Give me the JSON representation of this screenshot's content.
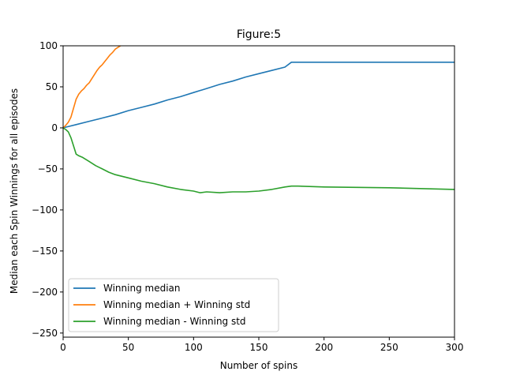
{
  "chart_data": {
    "type": "line",
    "title": "Figure:5",
    "xlabel": "Number of spins",
    "ylabel": "Median each Spin Winnings for all episodes",
    "xlim": [
      0,
      300
    ],
    "ylim": [
      -255,
      100
    ],
    "xticks": [
      0,
      50,
      100,
      150,
      200,
      250,
      300
    ],
    "yticks": [
      100,
      50,
      0,
      -50,
      -100,
      -150,
      -200,
      -250
    ],
    "grid": false,
    "legend_position": "lower-left",
    "series": [
      {
        "name": "Winning median",
        "color": "#1f77b4",
        "x": [
          0,
          10,
          20,
          30,
          40,
          50,
          60,
          70,
          80,
          90,
          100,
          110,
          120,
          130,
          140,
          150,
          160,
          170,
          175,
          200,
          250,
          300
        ],
        "y": [
          0,
          4,
          8,
          12,
          16,
          21,
          25,
          29,
          34,
          38,
          43,
          48,
          53,
          57,
          62,
          66,
          70,
          74,
          80,
          80,
          80,
          80
        ]
      },
      {
        "name": "Winning median + Winning std",
        "color": "#ff7f0e",
        "x": [
          0,
          2,
          4,
          6,
          8,
          10,
          12,
          14,
          16,
          18,
          20,
          22,
          24,
          26,
          28,
          30,
          32,
          34,
          36,
          38,
          40,
          42,
          44,
          46
        ],
        "y": [
          0,
          3,
          7,
          13,
          24,
          35,
          41,
          45,
          48,
          52,
          55,
          60,
          65,
          70,
          74,
          77,
          81,
          85,
          89,
          92,
          96,
          98,
          100,
          102
        ]
      },
      {
        "name": "Winning median - Winning std",
        "color": "#2ca02c",
        "x": [
          0,
          2,
          4,
          6,
          8,
          10,
          12,
          15,
          20,
          25,
          30,
          35,
          40,
          50,
          60,
          70,
          80,
          90,
          100,
          105,
          110,
          120,
          130,
          140,
          150,
          160,
          170,
          175,
          180,
          200,
          250,
          300
        ],
        "y": [
          0,
          -2,
          -5,
          -12,
          -22,
          -32,
          -34,
          -36,
          -41,
          -46,
          -50,
          -54,
          -57,
          -61,
          -65,
          -68,
          -72,
          -75,
          -77,
          -79,
          -78,
          -79,
          -78,
          -78,
          -77,
          -75,
          -72,
          -71,
          -71,
          -72,
          -73,
          -75
        ]
      }
    ]
  }
}
